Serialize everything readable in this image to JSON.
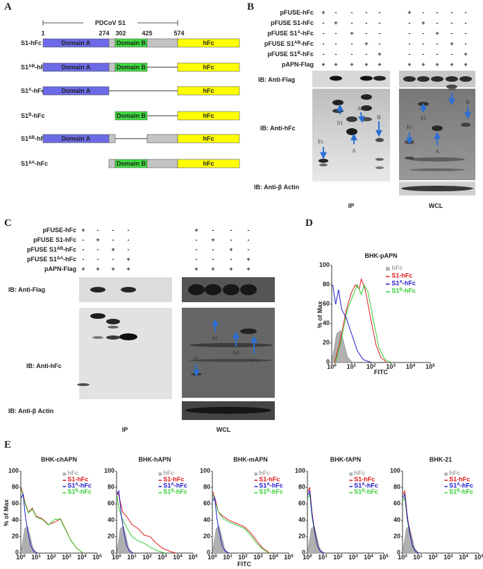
{
  "panel_a": {
    "letter": "A",
    "title": "PDCoV S1",
    "positions": [
      "1",
      "274",
      "302",
      "425",
      "574"
    ],
    "rows": [
      {
        "label": [
          "S1-hFc"
        ],
        "domains": [
          "Domain A",
          "Domain B",
          "hFc"
        ]
      },
      {
        "label": [
          "S1",
          "AB",
          "-hFc"
        ],
        "domains": [
          "Domain A",
          "Domain B",
          "hFc"
        ]
      },
      {
        "label": [
          "S1",
          "A",
          "-hFc"
        ],
        "domains": [
          "Domain A",
          "hFc"
        ]
      },
      {
        "label": [
          "S1",
          "B",
          "-hFc"
        ],
        "domains": [
          "Domain B",
          "hFc"
        ]
      },
      {
        "label": [
          "S1",
          "ΔB",
          "-hFc"
        ],
        "domains": [
          "Domain A",
          "hFc"
        ]
      },
      {
        "label": [
          "S1",
          "ΔA",
          "-hFc"
        ],
        "domains": [
          "Domain B",
          "hFc"
        ]
      }
    ]
  },
  "panel_b": {
    "letter": "B",
    "constructs": [
      {
        "label": [
          "pFUSE-hFc"
        ],
        "marks": [
          "+",
          "-",
          "-",
          "-",
          "-",
          "+",
          "-",
          "-",
          "-",
          "-"
        ]
      },
      {
        "label": [
          "pFUSE S1-hFc"
        ],
        "marks": [
          "-",
          "+",
          "-",
          "-",
          "-",
          "-",
          "+",
          "-",
          "-",
          "-"
        ]
      },
      {
        "label": [
          "pFUSE S1",
          "A",
          "-hFc"
        ],
        "marks": [
          "-",
          "-",
          "+",
          "-",
          "-",
          "-",
          "-",
          "+",
          "-",
          "-"
        ]
      },
      {
        "label": [
          "pFUSE S1",
          "AB",
          "-hFc"
        ],
        "marks": [
          "-",
          "-",
          "-",
          "+",
          "-",
          "-",
          "-",
          "-",
          "+",
          "-"
        ]
      },
      {
        "label": [
          "pFUSE S1",
          "B",
          "-hFc"
        ],
        "marks": [
          "-",
          "-",
          "-",
          "-",
          "+",
          "-",
          "-",
          "-",
          "-",
          "+"
        ]
      },
      {
        "label": [
          "pAPN-Flag"
        ],
        "marks": [
          "+",
          "+",
          "+",
          "+",
          "+",
          "+",
          "+",
          "+",
          "+",
          "+"
        ]
      }
    ],
    "blots": [
      "IB: Anti-Flag",
      "IB: Anti-hFc",
      "IB: Anti-β Actin"
    ],
    "lanes": [
      "IP",
      "WCL"
    ],
    "ip_annotations": [
      "Fc",
      "S1",
      "AB",
      "A",
      "B"
    ],
    "wcl_annotations": [
      "Fc",
      "S1",
      "AB",
      "A",
      "B"
    ]
  },
  "panel_c": {
    "letter": "C",
    "constructs": [
      {
        "label": [
          "pFUSE-hFc"
        ],
        "marks": [
          "+",
          "-",
          "-",
          "-",
          "+",
          "-",
          "-",
          "-"
        ]
      },
      {
        "label": [
          "pFUSE S1-hFc"
        ],
        "marks": [
          "-",
          "+",
          "-",
          "-",
          "-",
          "+",
          "-",
          "-"
        ]
      },
      {
        "label": [
          "pFUSE S1",
          "ΔB",
          "-hFc"
        ],
        "marks": [
          "-",
          "-",
          "+",
          "-",
          "-",
          "-",
          "+",
          "-"
        ]
      },
      {
        "label": [
          "pFUSE S1",
          "ΔA",
          "-hFc"
        ],
        "marks": [
          "-",
          "-",
          "-",
          "+",
          "-",
          "-",
          "-",
          "+"
        ]
      },
      {
        "label": [
          "pAPN-Flag"
        ],
        "marks": [
          "+",
          "+",
          "+",
          "+",
          "+",
          "+",
          "+",
          "+"
        ]
      }
    ],
    "blots": [
      "IB: Anti-Flag",
      "IB: Anti-hFc",
      "IB: Anti-β Actin"
    ],
    "lanes": [
      "IP",
      "WCL"
    ],
    "wcl_annotations": [
      "Fc",
      "S1",
      "ΔB",
      "ΔA"
    ]
  },
  "panel_d": {
    "letter": "D",
    "title": "BHK-pAPN",
    "y_label": "% of Max",
    "x_label": "FITC",
    "yticks": [
      "0",
      "20",
      "40",
      "60",
      "80",
      "100"
    ],
    "xticks": [
      [
        "10",
        "0"
      ],
      [
        "10",
        "1"
      ],
      [
        "10",
        "2"
      ],
      [
        "10",
        "3"
      ],
      [
        "10",
        "4"
      ],
      [
        "10",
        "5"
      ]
    ],
    "legend": [
      [
        "hFc"
      ],
      [
        "S1-hFc"
      ],
      [
        "S1",
        "A",
        "-hFc"
      ],
      [
        "S1",
        "B",
        "-hFc"
      ]
    ]
  },
  "panel_e": {
    "letter": "E",
    "y_label": "% of Max",
    "x_label": "FITC",
    "plots": [
      {
        "title": "BHK-chAPN"
      },
      {
        "title": "BHK-hAPN"
      },
      {
        "title": "BHK-mAPN"
      },
      {
        "title": "BHK-fAPN"
      },
      {
        "title": "BHK-21"
      }
    ],
    "yticks": [
      "0",
      "20",
      "40",
      "60",
      "80",
      "100"
    ],
    "xticks": [
      [
        "10",
        "0"
      ],
      [
        "10",
        "1"
      ],
      [
        "10",
        "2"
      ],
      [
        "10",
        "3"
      ],
      [
        "10",
        "4"
      ],
      [
        "10",
        "5"
      ]
    ],
    "legend": [
      [
        "hFc"
      ],
      [
        "S1-hFc"
      ],
      [
        "S1",
        "A",
        "-hFc"
      ],
      [
        "S1",
        "B",
        "-hFc"
      ]
    ]
  }
}
